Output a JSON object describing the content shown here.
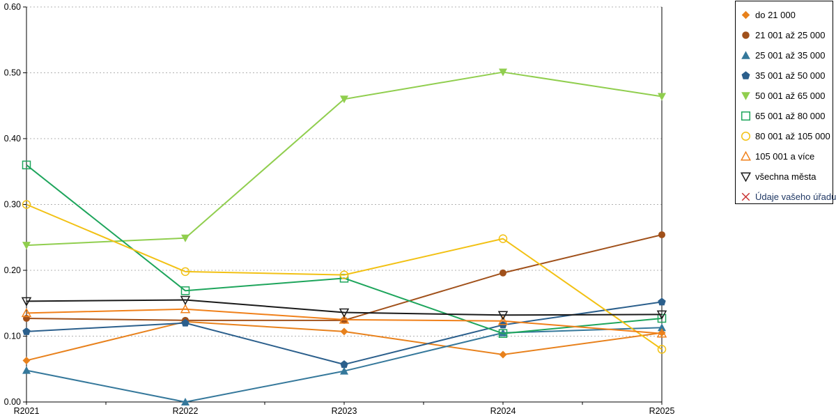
{
  "chart_data": {
    "type": "line",
    "title": "",
    "xlabel": "",
    "ylabel": "",
    "categories": [
      "R2021",
      "R2022",
      "R2023",
      "R2024",
      "R2025"
    ],
    "ylim": [
      0,
      0.6
    ],
    "ytick_labels": [
      "0.00",
      "0.10",
      "0.20",
      "0.30",
      "0.40",
      "0.50",
      "0.60"
    ],
    "grid": "horizontal-dotted",
    "legend_position": "right",
    "axis_color": "#000000",
    "grid_color": "#b0b0b0",
    "series": [
      {
        "name": "do 21 000",
        "color": "#E8811C",
        "marker": "diamond",
        "label_color": "#000000",
        "values": [
          0.063,
          0.122,
          0.107,
          0.072,
          0.105
        ]
      },
      {
        "name": "21 001 až 25 000",
        "color": "#A0501A",
        "marker": "circle",
        "label_color": "#000000",
        "values": [
          0.127,
          0.124,
          0.124,
          0.196,
          0.254
        ]
      },
      {
        "name": "25 001 až 35 000",
        "color": "#35789B",
        "marker": "triangle-up",
        "label_color": "#000000",
        "values": [
          0.048,
          0.0,
          0.047,
          0.105,
          0.113
        ]
      },
      {
        "name": "35 001 až 50 000",
        "color": "#2B5F8C",
        "marker": "pentagon",
        "label_color": "#000000",
        "values": [
          0.107,
          0.12,
          0.057,
          0.117,
          0.152
        ]
      },
      {
        "name": "50 001 až 65 000",
        "color": "#90CE4E",
        "marker": "triangle-down",
        "label_color": "#000000",
        "values": [
          0.238,
          0.249,
          0.46,
          0.501,
          0.464
        ]
      },
      {
        "name": "65 001 až 80 000",
        "color": "#1EA55C",
        "marker": "square-open",
        "label_color": "#000000",
        "values": [
          0.36,
          0.169,
          0.188,
          0.104,
          0.127
        ]
      },
      {
        "name": "80 001 až 105 000",
        "color": "#F2C114",
        "marker": "circle-open",
        "label_color": "#000000",
        "values": [
          0.3,
          0.198,
          0.193,
          0.248,
          0.08
        ]
      },
      {
        "name": "105 001 a více",
        "color": "#F0801A",
        "marker": "triangle-up-open",
        "label_color": "#000000",
        "values": [
          0.135,
          0.141,
          0.125,
          0.123,
          0.104
        ]
      },
      {
        "name": "všechna města",
        "color": "#1A1A1A",
        "marker": "triangle-down-open",
        "label_color": "#000000",
        "values": [
          0.153,
          0.155,
          0.136,
          0.132,
          0.133
        ]
      },
      {
        "name": "Údaje vašeho úřadu",
        "color": "#C83232",
        "marker": "x",
        "label_color": "#203864",
        "values": []
      }
    ]
  }
}
